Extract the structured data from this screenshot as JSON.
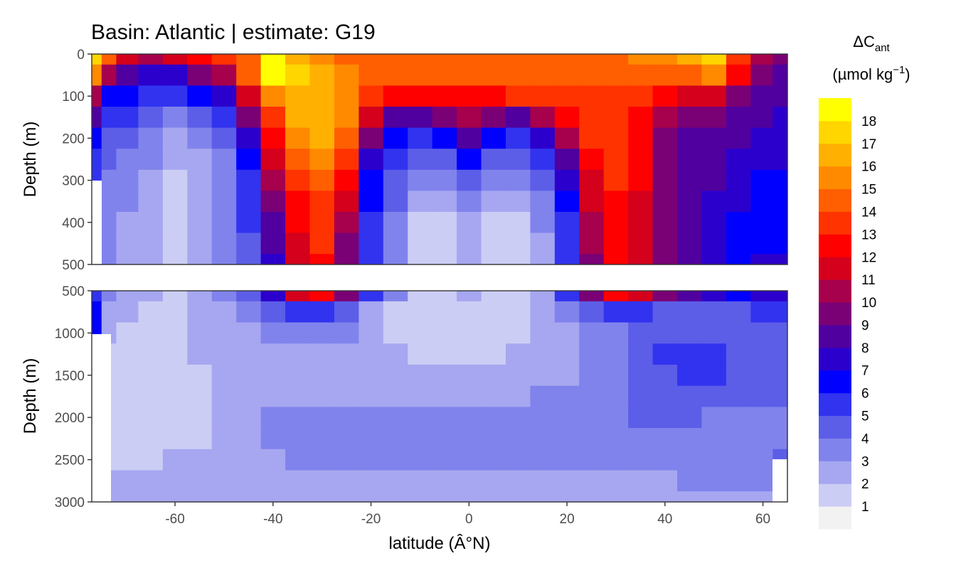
{
  "chart_data": {
    "type": "heatmap",
    "title": "Basin: Atlantic | estimate: G19",
    "xlabel": "latitude (Â°N)",
    "ylabel": "Depth (m)",
    "x_ticks": [
      "-60",
      "-40",
      "-20",
      "0",
      "20",
      "40",
      "60"
    ],
    "x_tick_values": [
      -60,
      -40,
      -20,
      0,
      20,
      40,
      60
    ],
    "xlim": [
      -77,
      65
    ],
    "panels": [
      {
        "name": "upper",
        "ylim": [
          500,
          0
        ],
        "y_ticks": [
          "0",
          "100",
          "200",
          "300",
          "400",
          "500"
        ],
        "y_tick_values": [
          0,
          100,
          200,
          300,
          400,
          500
        ]
      },
      {
        "name": "lower",
        "ylim": [
          3000,
          500
        ],
        "y_ticks": [
          "500",
          "1000",
          "1500",
          "2000",
          "2500",
          "3000"
        ],
        "y_tick_values": [
          500,
          1000,
          1500,
          2000,
          2500,
          3000
        ]
      }
    ],
    "lat_grid": [
      -76,
      -74,
      -70,
      -65,
      -60,
      -55,
      -50,
      -45,
      -40,
      -35,
      -30,
      -25,
      -20,
      -15,
      -10,
      -5,
      0,
      5,
      10,
      15,
      20,
      25,
      30,
      35,
      40,
      45,
      50,
      55,
      60,
      64
    ],
    "depth_grid": [
      0,
      50,
      100,
      150,
      200,
      250,
      300,
      350,
      400,
      450,
      500,
      750,
      1000,
      1250,
      1500,
      1750,
      2000,
      2250,
      2500,
      2750,
      3000
    ],
    "values": [
      [
        17,
        14,
        11,
        10,
        11,
        12,
        13,
        14,
        18,
        16,
        15,
        14,
        14,
        14,
        14,
        14,
        14,
        14,
        14,
        14,
        14,
        14,
        14,
        15,
        15,
        16,
        17,
        13,
        10,
        9
      ],
      [
        15,
        10,
        8,
        7,
        7,
        9,
        10,
        14,
        18,
        17,
        16,
        15,
        14,
        14,
        14,
        14,
        14,
        14,
        14,
        14,
        14,
        14,
        14,
        14,
        14,
        14,
        15,
        12,
        9,
        8
      ],
      [
        10,
        6,
        6,
        5,
        5,
        6,
        7,
        11,
        15,
        16,
        16,
        15,
        13,
        12,
        12,
        12,
        12,
        12,
        13,
        13,
        13,
        13,
        13,
        13,
        12,
        11,
        11,
        9,
        8,
        8
      ],
      [
        8,
        5,
        5,
        4,
        3,
        4,
        5,
        9,
        13,
        16,
        16,
        15,
        11,
        8,
        8,
        9,
        10,
        9,
        8,
        10,
        12,
        13,
        13,
        12,
        10,
        9,
        9,
        8,
        8,
        7
      ],
      [
        6,
        4,
        4,
        3,
        2,
        3,
        4,
        7,
        12,
        15,
        16,
        14,
        9,
        6,
        5,
        6,
        8,
        6,
        5,
        7,
        10,
        13,
        13,
        12,
        9,
        8,
        8,
        8,
        7,
        7
      ],
      [
        5,
        4,
        3,
        3,
        2,
        2,
        3,
        6,
        11,
        14,
        15,
        13,
        7,
        5,
        4,
        4,
        6,
        4,
        4,
        5,
        8,
        12,
        13,
        12,
        9,
        8,
        8,
        7,
        7,
        7
      ],
      [
        5,
        3,
        3,
        2,
        1,
        2,
        3,
        5,
        10,
        13,
        14,
        12,
        6,
        4,
        3,
        3,
        4,
        3,
        3,
        4,
        7,
        11,
        13,
        12,
        9,
        8,
        8,
        7,
        6,
        6
      ],
      [
        5,
        3,
        3,
        2,
        1,
        2,
        3,
        5,
        9,
        12,
        13,
        11,
        6,
        4,
        2,
        2,
        3,
        2,
        2,
        3,
        6,
        11,
        12,
        11,
        9,
        8,
        7,
        7,
        6,
        6
      ],
      [
        5,
        3,
        2,
        2,
        1,
        2,
        3,
        5,
        8,
        12,
        13,
        10,
        5,
        3,
        1,
        1,
        2,
        1,
        1,
        3,
        5,
        10,
        12,
        11,
        9,
        8,
        7,
        6,
        6,
        6
      ],
      [
        5,
        3,
        2,
        2,
        1,
        2,
        3,
        4,
        8,
        11,
        13,
        9,
        5,
        3,
        1,
        1,
        2,
        1,
        1,
        2,
        5,
        10,
        12,
        11,
        9,
        8,
        7,
        6,
        6,
        6
      ],
      [
        5,
        3,
        2,
        2,
        1,
        2,
        3,
        4,
        7,
        11,
        12,
        9,
        5,
        3,
        1,
        1,
        2,
        1,
        1,
        2,
        5,
        9,
        12,
        11,
        9,
        8,
        7,
        6,
        7,
        7
      ],
      [
        6,
        2,
        2,
        1,
        1,
        2,
        2,
        3,
        4,
        5,
        5,
        4,
        2,
        1,
        1,
        1,
        1,
        1,
        1,
        2,
        3,
        4,
        5,
        5,
        4,
        4,
        4,
        4,
        5,
        5
      ],
      [
        6,
        2,
        1,
        1,
        1,
        2,
        2,
        2,
        3,
        3,
        3,
        3,
        2,
        1,
        1,
        1,
        1,
        1,
        1,
        2,
        2,
        3,
        3,
        4,
        4,
        4,
        4,
        4,
        4,
        4
      ],
      [
        1,
        1,
        1,
        1,
        1,
        2,
        2,
        2,
        2,
        2,
        2,
        2,
        2,
        2,
        1,
        1,
        1,
        1,
        2,
        2,
        2,
        3,
        3,
        4,
        5,
        5,
        5,
        4,
        4,
        4
      ],
      [
        1,
        1,
        1,
        1,
        1,
        1,
        2,
        2,
        2,
        2,
        2,
        2,
        2,
        2,
        2,
        2,
        2,
        2,
        2,
        2,
        2,
        3,
        3,
        4,
        4,
        5,
        5,
        4,
        4,
        4
      ],
      [
        1,
        1,
        1,
        1,
        1,
        1,
        2,
        2,
        2,
        2,
        2,
        2,
        2,
        2,
        2,
        2,
        2,
        2,
        2,
        3,
        3,
        3,
        3,
        4,
        4,
        4,
        4,
        4,
        4,
        4
      ],
      [
        1,
        1,
        1,
        1,
        1,
        1,
        2,
        2,
        3,
        3,
        3,
        3,
        3,
        3,
        3,
        3,
        3,
        3,
        3,
        3,
        3,
        3,
        3,
        4,
        4,
        4,
        3,
        3,
        3,
        3
      ],
      [
        1,
        1,
        1,
        1,
        1,
        1,
        2,
        2,
        3,
        3,
        3,
        3,
        3,
        3,
        3,
        3,
        3,
        3,
        3,
        3,
        3,
        3,
        3,
        3,
        3,
        3,
        3,
        3,
        3,
        3
      ],
      [
        1,
        1,
        1,
        1,
        2,
        2,
        2,
        2,
        2,
        3,
        3,
        3,
        3,
        3,
        3,
        3,
        3,
        3,
        3,
        3,
        3,
        3,
        3,
        3,
        3,
        3,
        3,
        3,
        3,
        4
      ],
      [
        2,
        2,
        2,
        2,
        2,
        2,
        2,
        2,
        2,
        2,
        2,
        2,
        2,
        2,
        2,
        2,
        2,
        2,
        2,
        2,
        2,
        2,
        2,
        2,
        2,
        3,
        3,
        3,
        3,
        3
      ],
      [
        2,
        2,
        2,
        2,
        2,
        2,
        2,
        2,
        2,
        2,
        2,
        2,
        2,
        2,
        2,
        2,
        2,
        2,
        2,
        2,
        2,
        2,
        2,
        2,
        2,
        2,
        2,
        2,
        2,
        2
      ]
    ],
    "legend": {
      "title_main": "ΔC",
      "title_sub": "ant",
      "unit_main": "(µmol kg",
      "unit_sup": "−1",
      "unit_close": ")",
      "levels": [
        "18",
        "17",
        "16",
        "15",
        "14",
        "13",
        "12",
        "11",
        "10",
        "9",
        "8",
        "7",
        "6",
        "5",
        "4",
        "3",
        "2",
        "1"
      ]
    },
    "colors": [
      "#f2f2f2",
      "#cccdf4",
      "#a6a7f0",
      "#8183ec",
      "#5c5ee8",
      "#3133ef",
      "#0000ff",
      "#2c00cc",
      "#50009e",
      "#7a0076",
      "#a7004c",
      "#d4001c",
      "#ff0000",
      "#ff3300",
      "#ff5f00",
      "#ff8a00",
      "#ffb000",
      "#ffd600",
      "#ffff00"
    ],
    "grid": false,
    "legend_position": "right"
  }
}
